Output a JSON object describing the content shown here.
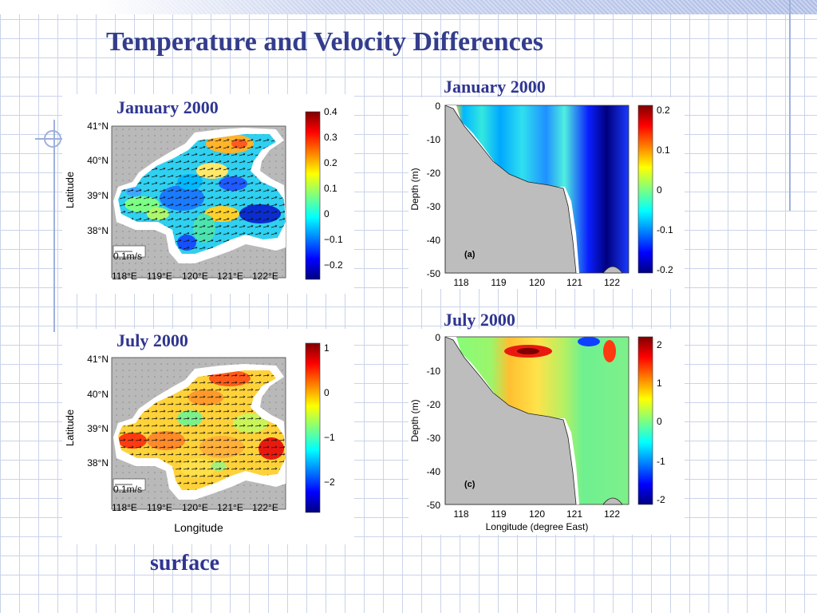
{
  "slide": {
    "title": "Temperature and Velocity Differences",
    "bottom_label": "surface"
  },
  "panels": {
    "surface_jan": {
      "caption": "January 2000",
      "ylabel": "Latitude",
      "lat_ticks": [
        "41°N",
        "40°N",
        "39°N",
        "38°N"
      ],
      "lon_ticks": [
        "118°E",
        "119°E",
        "120°E",
        "121°E",
        "122°E"
      ],
      "vector_scale": "0.1m/s",
      "colorbar_ticks": [
        "0.4",
        "0.3",
        "0.2",
        "0.1",
        "0",
        "−0.1",
        "−0.2"
      ]
    },
    "surface_jul": {
      "caption": "July 2000",
      "ylabel": "Latitude",
      "xlabel": "Longitude",
      "lat_ticks": [
        "41°N",
        "40°N",
        "39°N",
        "38°N"
      ],
      "lon_ticks": [
        "118°E",
        "119°E",
        "120°E",
        "121°E",
        "122°E"
      ],
      "vector_scale": "0.1m/s",
      "colorbar_ticks": [
        "1",
        "0",
        "−1",
        "−2"
      ]
    },
    "section_jan": {
      "caption": "January 2000",
      "ylabel": "Depth (m)",
      "depth_ticks": [
        "0",
        "-10",
        "-20",
        "-30",
        "-40",
        "-50"
      ],
      "lon_ticks": [
        "118",
        "119",
        "120",
        "121",
        "122"
      ],
      "panel_tag": "(a)",
      "colorbar_ticks": [
        "0.2",
        "0.1",
        "0",
        "-0.1",
        "-0.2"
      ]
    },
    "section_jul": {
      "caption": "July 2000",
      "ylabel": "Depth (m)",
      "xlabel": "Longitude (degree East)",
      "depth_ticks": [
        "0",
        "-10",
        "-20",
        "-30",
        "-40",
        "-50"
      ],
      "lon_ticks": [
        "118",
        "119",
        "120",
        "121",
        "122"
      ],
      "panel_tag": "(c)",
      "colorbar_ticks": [
        "2",
        "1",
        "0",
        "-1",
        "-2"
      ]
    }
  },
  "colors": {
    "title": "#343d8c",
    "caption": "#2f3590",
    "land": "#bdbdbd"
  }
}
